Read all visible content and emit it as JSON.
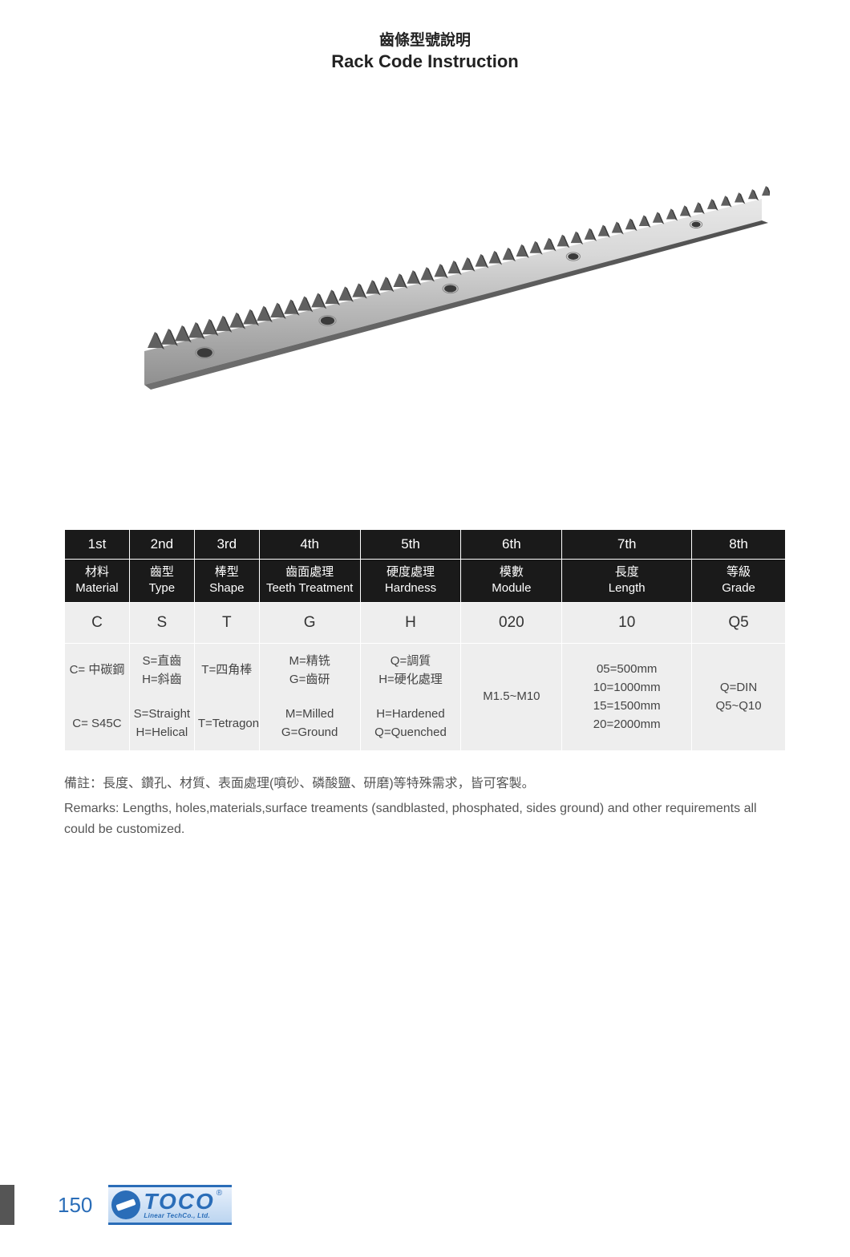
{
  "title": {
    "cn": "齒條型號說明",
    "en": "Rack Code Instruction"
  },
  "rack_image": {
    "body_color": "#c8c8c8",
    "highlight_color": "#e6e6e6",
    "shadow_color": "#888888",
    "hole_color": "#555555",
    "teeth_count": 46,
    "holes": 5
  },
  "table": {
    "header_bg": "#1a1a1a",
    "header_color": "#ffffff",
    "cell_bg": "#eeeeee",
    "positions": [
      "1st",
      "2nd",
      "3rd",
      "4th",
      "5th",
      "6th",
      "7th",
      "8th"
    ],
    "attrs_cn": [
      "材料",
      "齒型",
      "棒型",
      "齒面處理",
      "硬度處理",
      "模數",
      "長度",
      "等級"
    ],
    "attrs_en": [
      "Material",
      "Type",
      "Shape",
      "Teeth Treatment",
      "Hardness",
      "Module",
      "Length",
      "Grade"
    ],
    "codes": [
      "C",
      "S",
      "T",
      "G",
      "H",
      "020",
      "10",
      "Q5"
    ],
    "desc_cn": [
      "C= 中碳鋼",
      "S=直齒\nH=斜齒",
      "T=四角棒",
      "M=精铣\nG=齒研",
      "Q=調質\nH=硬化處理",
      "",
      "",
      ""
    ],
    "desc_en": [
      "C= S45C",
      "S=Straight\nH=Helical",
      "T=Tetragon",
      "M=Milled\nG=Ground",
      "H=Hardened\nQ=Quenched",
      "",
      "",
      ""
    ],
    "module_span": "M1.5~M10",
    "length_span": "05=500mm\n10=1000mm\n15=1500mm\n20=2000mm",
    "grade_span": "Q=DIN\nQ5~Q10"
  },
  "remarks": {
    "cn": "備註：長度、鑽孔、材質、表面處理(噴砂、磷酸鹽、研磨)等特殊需求，皆可客製。",
    "en": "Remarks: Lengths, holes,materials,surface treaments (sandblasted, phosphated, sides ground) and other requirements all could be customized."
  },
  "footer": {
    "page_number": "150",
    "logo_main": "TOCO",
    "logo_sub": "Linear TechCo., Ltd.",
    "logo_r": "®",
    "brand_color": "#2a6db8"
  }
}
